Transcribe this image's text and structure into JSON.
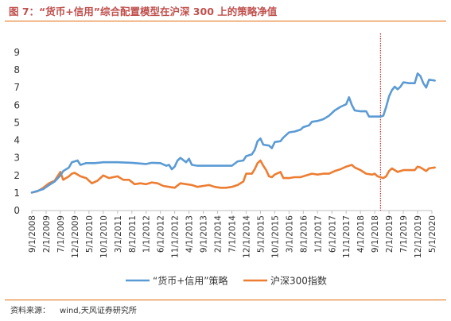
{
  "figure": {
    "title": "图 7：“货币+信用”综合配置模型在沪深 300 上的策略净值",
    "source_label": "资料来源：",
    "source_value": "wind,天风证券研究所"
  },
  "colors": {
    "series1": "#5B9BD5",
    "series2": "#ED7D31",
    "marker": "#C00000",
    "title": "#C0504D",
    "rule": "#E36C0A"
  },
  "chart_data": {
    "type": "line",
    "title": "",
    "xlabel": "",
    "ylabel": "",
    "ylim": [
      0,
      9
    ],
    "yticks": [
      0,
      1,
      2,
      3,
      4,
      5,
      6,
      7,
      8,
      9
    ],
    "grid": false,
    "legend": "bottom",
    "x_tick_labels": [
      "9/1/2008",
      "2/1/2009",
      "7/1/2009",
      "12/1/2009",
      "5/1/2010",
      "10/1/2010",
      "3/1/2011",
      "8/1/2011",
      "1/1/2012",
      "6/1/2012",
      "11/1/2012",
      "4/1/2013",
      "9/1/2013",
      "2/1/2014",
      "7/1/2014",
      "12/1/2014",
      "5/1/2015",
      "10/1/2015",
      "3/1/2016",
      "8/1/2016",
      "1/1/2017",
      "6/1/2017",
      "11/1/2017",
      "4/1/2018",
      "9/1/2018",
      "2/1/2019",
      "7/1/2019",
      "12/1/2019",
      "5/1/2020"
    ],
    "vline_x": "11/1/2018",
    "series": [
      {
        "name": "“货币+信用”策略",
        "points": [
          [
            "9/1/2008",
            1.02
          ],
          [
            "11/1/2008",
            1.12
          ],
          [
            "1/1/2009",
            1.22
          ],
          [
            "3/1/2009",
            1.45
          ],
          [
            "5/1/2009",
            1.65
          ],
          [
            "7/1/2009",
            2.0
          ],
          [
            "8/1/2009",
            2.25
          ],
          [
            "10/1/2009",
            2.45
          ],
          [
            "11/1/2009",
            2.75
          ],
          [
            "1/1/2010",
            2.85
          ],
          [
            "2/1/2010",
            2.6
          ],
          [
            "4/1/2010",
            2.7
          ],
          [
            "7/1/2010",
            2.7
          ],
          [
            "10/1/2010",
            2.75
          ],
          [
            "3/1/2011",
            2.75
          ],
          [
            "8/1/2011",
            2.72
          ],
          [
            "1/1/2012",
            2.65
          ],
          [
            "3/1/2012",
            2.72
          ],
          [
            "6/1/2012",
            2.7
          ],
          [
            "8/1/2012",
            2.55
          ],
          [
            "9/1/2012",
            2.6
          ],
          [
            "10/1/2012",
            2.35
          ],
          [
            "11/1/2012",
            2.5
          ],
          [
            "12/1/2012",
            2.85
          ],
          [
            "1/1/2013",
            3.0
          ],
          [
            "3/1/2013",
            2.75
          ],
          [
            "4/1/2013",
            2.95
          ],
          [
            "5/1/2013",
            2.6
          ],
          [
            "7/1/2013",
            2.55
          ],
          [
            "9/1/2013",
            2.55
          ],
          [
            "2/1/2014",
            2.55
          ],
          [
            "7/1/2014",
            2.55
          ],
          [
            "9/1/2014",
            2.8
          ],
          [
            "11/1/2014",
            2.85
          ],
          [
            "12/1/2014",
            3.1
          ],
          [
            "2/1/2015",
            3.2
          ],
          [
            "3/1/2015",
            3.45
          ],
          [
            "4/1/2015",
            3.95
          ],
          [
            "5/1/2015",
            4.1
          ],
          [
            "6/1/2015",
            3.75
          ],
          [
            "8/1/2015",
            3.7
          ],
          [
            "9/1/2015",
            3.55
          ],
          [
            "10/1/2015",
            3.9
          ],
          [
            "12/1/2015",
            3.95
          ],
          [
            "1/1/2016",
            4.15
          ],
          [
            "3/1/2016",
            4.45
          ],
          [
            "5/1/2016",
            4.5
          ],
          [
            "7/1/2016",
            4.6
          ],
          [
            "8/1/2016",
            4.75
          ],
          [
            "10/1/2016",
            4.85
          ],
          [
            "11/1/2016",
            5.05
          ],
          [
            "1/1/2017",
            5.1
          ],
          [
            "3/1/2017",
            5.2
          ],
          [
            "5/1/2017",
            5.4
          ],
          [
            "7/1/2017",
            5.7
          ],
          [
            "9/1/2017",
            5.9
          ],
          [
            "11/1/2017",
            6.05
          ],
          [
            "12/1/2017",
            6.45
          ],
          [
            "1/1/2018",
            6.0
          ],
          [
            "2/1/2018",
            5.7
          ],
          [
            "4/1/2018",
            5.65
          ],
          [
            "6/1/2018",
            5.65
          ],
          [
            "7/1/2018",
            5.35
          ],
          [
            "9/1/2018",
            5.35
          ],
          [
            "11/1/2018",
            5.35
          ],
          [
            "12/1/2018",
            5.4
          ],
          [
            "1/1/2019",
            5.9
          ],
          [
            "2/1/2019",
            6.5
          ],
          [
            "3/1/2019",
            6.85
          ],
          [
            "4/1/2019",
            7.05
          ],
          [
            "5/1/2019",
            6.9
          ],
          [
            "6/1/2019",
            7.05
          ],
          [
            "7/1/2019",
            7.3
          ],
          [
            "9/1/2019",
            7.25
          ],
          [
            "11/1/2019",
            7.25
          ],
          [
            "12/1/2019",
            7.8
          ],
          [
            "1/1/2020",
            7.65
          ],
          [
            "2/1/2020",
            7.25
          ],
          [
            "3/1/2020",
            7.0
          ],
          [
            "4/1/2020",
            7.45
          ],
          [
            "6/1/2020",
            7.4
          ]
        ]
      },
      {
        "name": "沪深300指数",
        "points": [
          [
            "9/1/2008",
            1.02
          ],
          [
            "11/1/2008",
            1.1
          ],
          [
            "1/1/2009",
            1.3
          ],
          [
            "3/1/2009",
            1.55
          ],
          [
            "5/1/2009",
            1.7
          ],
          [
            "7/1/2009",
            2.2
          ],
          [
            "8/1/2009",
            1.75
          ],
          [
            "10/1/2009",
            1.95
          ],
          [
            "11/1/2009",
            2.1
          ],
          [
            "12/1/2009",
            2.15
          ],
          [
            "2/1/2010",
            1.95
          ],
          [
            "4/1/2010",
            1.85
          ],
          [
            "6/1/2010",
            1.55
          ],
          [
            "8/1/2010",
            1.7
          ],
          [
            "10/1/2010",
            2.0
          ],
          [
            "12/1/2010",
            1.85
          ],
          [
            "3/1/2011",
            1.95
          ],
          [
            "5/1/2011",
            1.75
          ],
          [
            "7/1/2011",
            1.75
          ],
          [
            "9/1/2011",
            1.5
          ],
          [
            "11/1/2011",
            1.55
          ],
          [
            "1/1/2012",
            1.5
          ],
          [
            "3/1/2012",
            1.6
          ],
          [
            "5/1/2012",
            1.55
          ],
          [
            "7/1/2012",
            1.4
          ],
          [
            "9/1/2012",
            1.35
          ],
          [
            "11/1/2012",
            1.3
          ],
          [
            "1/1/2013",
            1.55
          ],
          [
            "3/1/2013",
            1.5
          ],
          [
            "5/1/2013",
            1.45
          ],
          [
            "7/1/2013",
            1.35
          ],
          [
            "9/1/2013",
            1.4
          ],
          [
            "11/1/2013",
            1.45
          ],
          [
            "1/1/2014",
            1.35
          ],
          [
            "3/1/2014",
            1.3
          ],
          [
            "5/1/2014",
            1.3
          ],
          [
            "7/1/2014",
            1.35
          ],
          [
            "9/1/2014",
            1.45
          ],
          [
            "11/1/2014",
            1.65
          ],
          [
            "12/1/2014",
            2.1
          ],
          [
            "2/1/2015",
            2.1
          ],
          [
            "3/1/2015",
            2.35
          ],
          [
            "4/1/2015",
            2.7
          ],
          [
            "5/1/2015",
            2.85
          ],
          [
            "6/1/2015",
            2.55
          ],
          [
            "7/1/2015",
            2.3
          ],
          [
            "8/1/2015",
            1.95
          ],
          [
            "9/1/2015",
            1.9
          ],
          [
            "10/1/2015",
            2.05
          ],
          [
            "12/1/2015",
            2.2
          ],
          [
            "1/1/2016",
            1.85
          ],
          [
            "3/1/2016",
            1.85
          ],
          [
            "5/1/2016",
            1.9
          ],
          [
            "7/1/2016",
            1.9
          ],
          [
            "9/1/2016",
            2.0
          ],
          [
            "11/1/2016",
            2.1
          ],
          [
            "1/1/2017",
            2.05
          ],
          [
            "3/1/2017",
            2.1
          ],
          [
            "5/1/2017",
            2.1
          ],
          [
            "7/1/2017",
            2.25
          ],
          [
            "9/1/2017",
            2.35
          ],
          [
            "11/1/2017",
            2.5
          ],
          [
            "1/1/2018",
            2.6
          ],
          [
            "2/1/2018",
            2.45
          ],
          [
            "4/1/2018",
            2.3
          ],
          [
            "6/1/2018",
            2.1
          ],
          [
            "8/1/2018",
            2.05
          ],
          [
            "9/1/2018",
            2.1
          ],
          [
            "10/1/2018",
            1.95
          ],
          [
            "12/1/2018",
            1.85
          ],
          [
            "1/1/2019",
            1.95
          ],
          [
            "2/1/2019",
            2.25
          ],
          [
            "3/1/2019",
            2.4
          ],
          [
            "5/1/2019",
            2.2
          ],
          [
            "7/1/2019",
            2.3
          ],
          [
            "9/1/2019",
            2.3
          ],
          [
            "11/1/2019",
            2.3
          ],
          [
            "12/1/2019",
            2.5
          ],
          [
            "1/1/2020",
            2.45
          ],
          [
            "2/1/2020",
            2.35
          ],
          [
            "3/1/2020",
            2.25
          ],
          [
            "4/1/2020",
            2.4
          ],
          [
            "6/1/2020",
            2.45
          ]
        ]
      }
    ]
  }
}
